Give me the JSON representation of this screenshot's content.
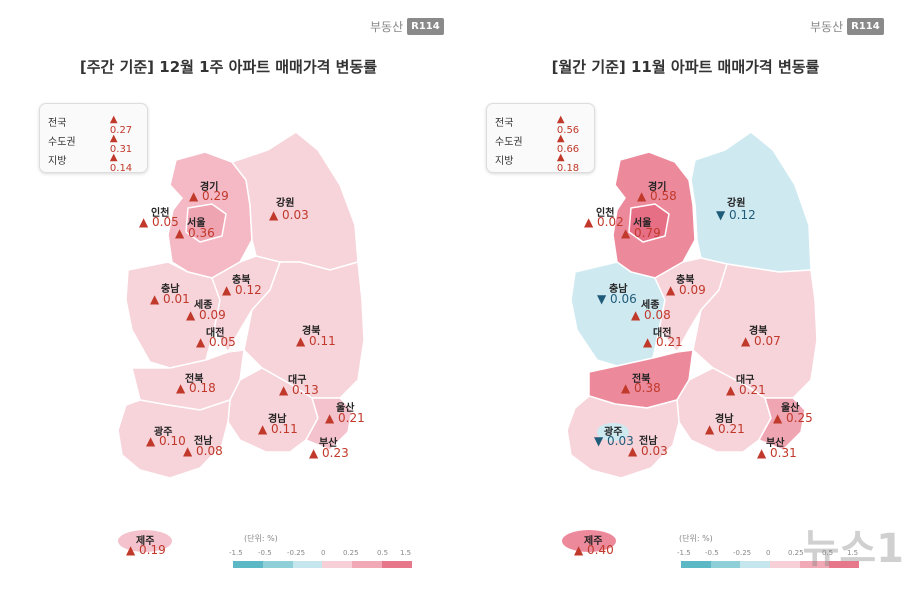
{
  "brand": {
    "name": "부동산",
    "badge": "R114"
  },
  "left": {
    "title": "[주간 기준] 12월 1주 아파트 매매가격 변동률",
    "summary": [
      {
        "name": "전국",
        "value": "▲ 0.27"
      },
      {
        "name": "수도권",
        "value": "▲ 0.31"
      },
      {
        "name": "지방",
        "value": "▲ 0.14"
      }
    ],
    "regions": [
      {
        "name": "경기",
        "value": "▲ 0.29",
        "dir": "up"
      },
      {
        "name": "강원",
        "value": "▲ 0.03",
        "dir": "up"
      },
      {
        "name": "인천",
        "value": "▲ 0.05",
        "dir": "up"
      },
      {
        "name": "서울",
        "value": "▲ 0.36",
        "dir": "up"
      },
      {
        "name": "충북",
        "value": "▲ 0.12",
        "dir": "up"
      },
      {
        "name": "충남",
        "value": "▲ 0.01",
        "dir": "up"
      },
      {
        "name": "세종",
        "value": "▲ 0.09",
        "dir": "up"
      },
      {
        "name": "대전",
        "value": "▲ 0.05",
        "dir": "up"
      },
      {
        "name": "경북",
        "value": "▲ 0.11",
        "dir": "up"
      },
      {
        "name": "전북",
        "value": "▲ 0.18",
        "dir": "up"
      },
      {
        "name": "대구",
        "value": "▲ 0.13",
        "dir": "up"
      },
      {
        "name": "울산",
        "value": "▲ 0.21",
        "dir": "up"
      },
      {
        "name": "광주",
        "value": "▲ 0.10",
        "dir": "up"
      },
      {
        "name": "전남",
        "value": "▲ 0.08",
        "dir": "up"
      },
      {
        "name": "경남",
        "value": "▲ 0.11",
        "dir": "up"
      },
      {
        "name": "부산",
        "value": "▲ 0.23",
        "dir": "up"
      },
      {
        "name": "제주",
        "value": "▲ 0.19",
        "dir": "up"
      }
    ]
  },
  "right": {
    "title": "[월간 기준] 11월 아파트 매매가격 변동률",
    "summary": [
      {
        "name": "전국",
        "value": "▲ 0.56"
      },
      {
        "name": "수도권",
        "value": "▲ 0.66"
      },
      {
        "name": "지방",
        "value": "▲ 0.18"
      }
    ],
    "regions": [
      {
        "name": "경기",
        "value": "▲ 0.58",
        "dir": "up"
      },
      {
        "name": "강원",
        "value": "▼ 0.12",
        "dir": "down"
      },
      {
        "name": "인천",
        "value": "▲ 0.02",
        "dir": "up"
      },
      {
        "name": "서울",
        "value": "▲ 0.79",
        "dir": "up"
      },
      {
        "name": "충북",
        "value": "▲ 0.09",
        "dir": "up"
      },
      {
        "name": "충남",
        "value": "▼ 0.06",
        "dir": "down"
      },
      {
        "name": "세종",
        "value": "▲ 0.08",
        "dir": "up"
      },
      {
        "name": "대전",
        "value": "▲ 0.21",
        "dir": "up"
      },
      {
        "name": "경북",
        "value": "▲ 0.07",
        "dir": "up"
      },
      {
        "name": "전북",
        "value": "▲ 0.38",
        "dir": "up"
      },
      {
        "name": "대구",
        "value": "▲ 0.21",
        "dir": "up"
      },
      {
        "name": "울산",
        "value": "▲ 0.25",
        "dir": "up"
      },
      {
        "name": "광주",
        "value": "▼ 0.03",
        "dir": "down"
      },
      {
        "name": "전남",
        "value": "▲ 0.03",
        "dir": "up"
      },
      {
        "name": "경남",
        "value": "▲ 0.21",
        "dir": "up"
      },
      {
        "name": "부산",
        "value": "▲ 0.31",
        "dir": "up"
      },
      {
        "name": "제주",
        "value": "▲ 0.40",
        "dir": "up"
      }
    ]
  },
  "legend": {
    "unit": "(단위: %)",
    "ticks": [
      "-1.5",
      "-0.5",
      "-0.25",
      "0",
      "0.25",
      "0.5",
      "1.5"
    ],
    "colors": [
      "#5bb8c4",
      "#8fd0d8",
      "#c4e6ec",
      "#f6d0d6",
      "#f0a9b5",
      "#e7788b"
    ]
  },
  "colors": {
    "up": "#c0392b",
    "down": "#1f5c7a",
    "light_pink": "#f7d3da",
    "mid_pink": "#f0a5b3",
    "dark_pink": "#e9798d",
    "light_blue": "#cfe9f1"
  },
  "watermark": "뉴스1"
}
